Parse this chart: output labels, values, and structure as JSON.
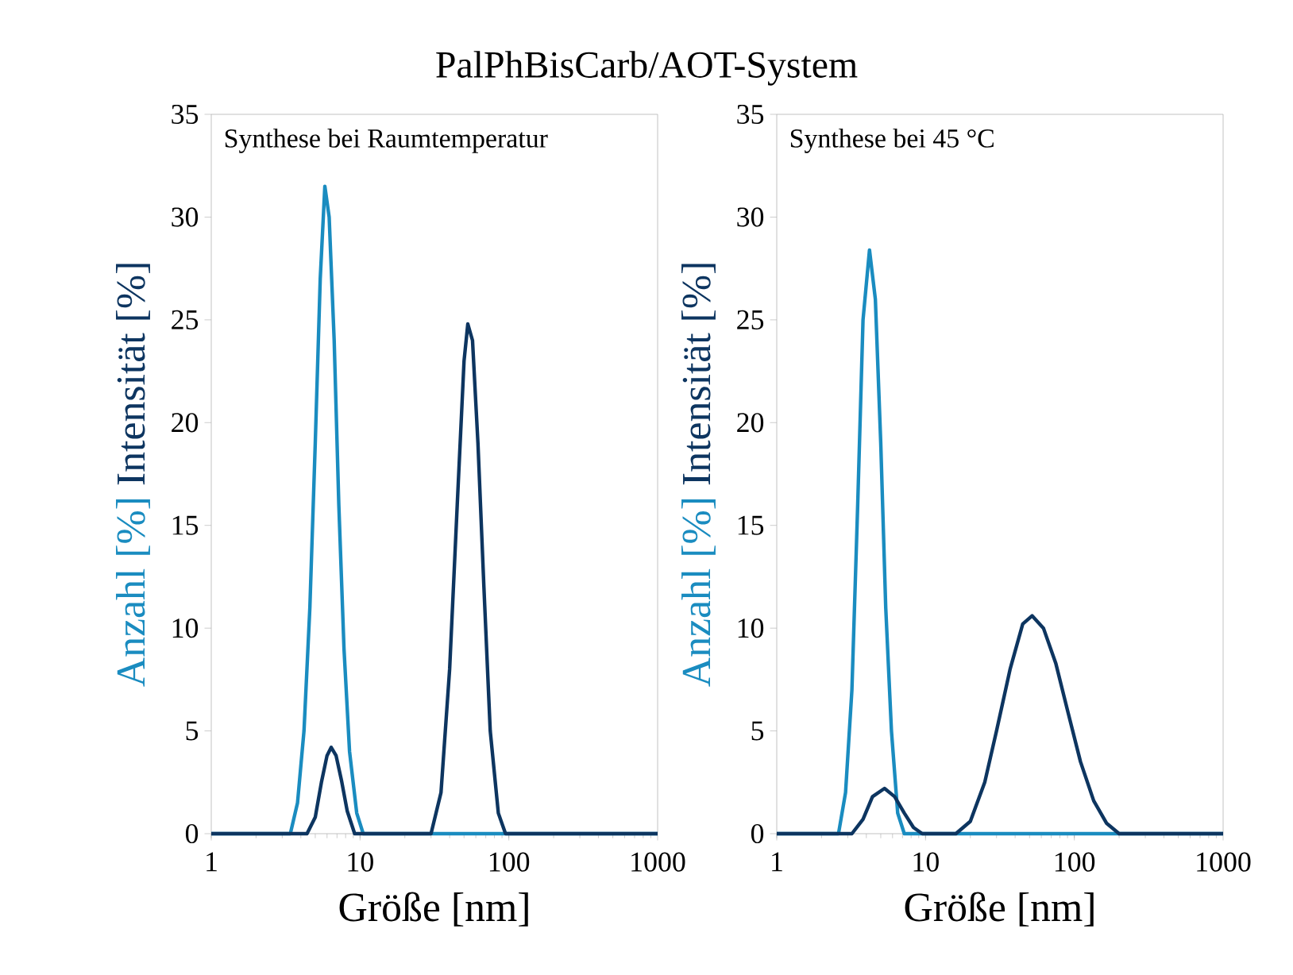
{
  "chart_data": [
    {
      "type": "line",
      "title": "PalPhBisCarb/AOT-System",
      "annotations": [
        "Synthese bei Raumtemperatur"
      ],
      "xlabel": "Größe [nm]",
      "log": "x",
      "xlim": [
        1,
        1000
      ],
      "xticks": [
        1,
        10,
        100,
        1000
      ],
      "ylim": [
        0,
        35
      ],
      "yticks": [
        0,
        5,
        10,
        15,
        20,
        25,
        30,
        35
      ],
      "marker": "none",
      "line_style": "solid",
      "series": [
        {
          "name": "Anzahl [%]",
          "color": "#1a8cc0",
          "x": [
            1,
            3.4,
            3.8,
            4.2,
            4.6,
            5.0,
            5.4,
            5.8,
            6.2,
            6.7,
            7.2,
            7.8,
            8.5,
            9.5,
            10.5,
            1000
          ],
          "values": [
            0,
            0,
            1.5,
            5,
            11,
            19,
            27,
            31.5,
            30,
            24,
            16,
            9,
            4,
            1,
            0,
            0
          ]
        },
        {
          "name": "Intensität [%]",
          "color": "#0d3560",
          "x": [
            1,
            4.4,
            5.0,
            5.5,
            6.0,
            6.4,
            6.9,
            7.5,
            8.2,
            9.2,
            30,
            35,
            40,
            45,
            50,
            53,
            57,
            62,
            68,
            75,
            85,
            95,
            1000
          ],
          "values": [
            0,
            0,
            0.8,
            2.5,
            3.8,
            4.2,
            3.8,
            2.6,
            1.1,
            0,
            0,
            2,
            8,
            16,
            23,
            24.8,
            24,
            19,
            12,
            5,
            1,
            0,
            0
          ]
        }
      ]
    },
    {
      "type": "line",
      "annotations": [
        "Synthese bei 45 °C"
      ],
      "xlabel": "Größe [nm]",
      "log": "x",
      "xlim": [
        1,
        1000
      ],
      "xticks": [
        1,
        10,
        100,
        1000
      ],
      "ylim": [
        0,
        35
      ],
      "yticks": [
        0,
        5,
        10,
        15,
        20,
        25,
        30,
        35
      ],
      "marker": "none",
      "line_style": "solid",
      "series": [
        {
          "name": "Anzahl [%]",
          "color": "#1a8cc0",
          "x": [
            1,
            2.6,
            2.9,
            3.2,
            3.5,
            3.8,
            4.2,
            4.6,
            5.0,
            5.4,
            5.9,
            6.5,
            7.2,
            1000
          ],
          "values": [
            0,
            0,
            2,
            7,
            16,
            25,
            28.4,
            26,
            19,
            11,
            5,
            1,
            0,
            0
          ]
        },
        {
          "name": "Intensität [%]",
          "color": "#0d3560",
          "x": [
            1,
            3.2,
            3.8,
            4.4,
            5.3,
            6.2,
            7.2,
            8.3,
            9.5,
            16,
            20,
            25,
            30,
            37,
            45,
            52,
            62,
            75,
            90,
            110,
            135,
            165,
            200,
            1000
          ],
          "values": [
            0,
            0,
            0.7,
            1.8,
            2.2,
            1.8,
            1.0,
            0.3,
            0,
            0,
            0.6,
            2.5,
            5,
            8,
            10.2,
            10.6,
            10,
            8.3,
            6,
            3.5,
            1.6,
            0.5,
            0,
            0
          ]
        }
      ]
    }
  ]
}
